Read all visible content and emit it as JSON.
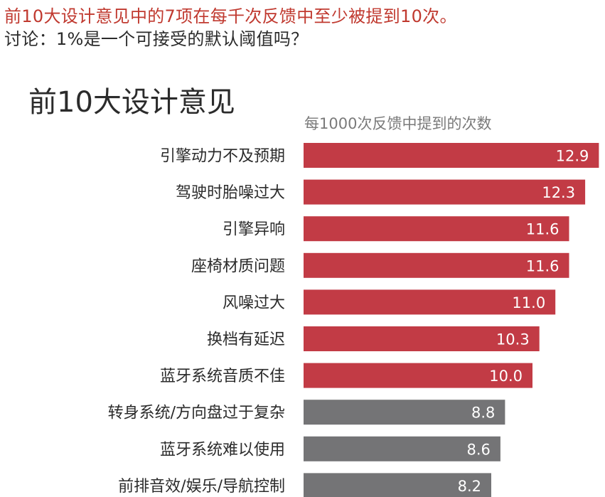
{
  "headline": {
    "line1": "前10大设计意见中的7项在每千次反馈中至少被提到10次。",
    "line2": "讨论：1%是一个可接受的默认阈值吗？"
  },
  "colors": {
    "highlight": "#c23b45",
    "neutral": "#747476",
    "headline_accent": "#c0392f"
  },
  "chart_data": {
    "type": "bar",
    "orientation": "horizontal",
    "title": "前10大设计意见",
    "subtitle": "每1000次反馈中提到的次数",
    "categories": [
      "引擎动力不及预期",
      "驾驶时胎噪过大",
      "引擎异响",
      "座椅材质问题",
      "风噪过大",
      "换档有延迟",
      "蓝牙系统音质不佳",
      "转身系统/方向盘过于复杂",
      "蓝牙系统难以使用",
      "前排音效/娱乐/导航控制"
    ],
    "values": [
      12.9,
      12.3,
      11.6,
      11.6,
      11.0,
      10.3,
      10.0,
      8.8,
      8.6,
      8.2
    ],
    "value_labels": [
      "12.9",
      "12.3",
      "11.6",
      "11.6",
      "11.0",
      "10.3",
      "10.0",
      "8.8",
      "8.6",
      "8.2"
    ],
    "highlight_threshold": 10,
    "xlim": [
      0,
      13.2
    ],
    "grid": false,
    "legend": "none"
  }
}
